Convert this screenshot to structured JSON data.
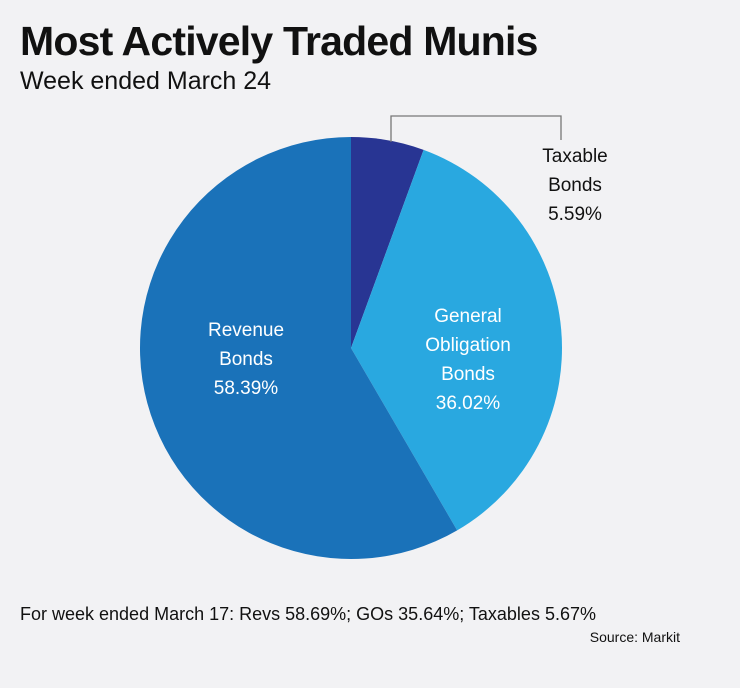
{
  "chart_data": {
    "type": "pie",
    "title": "Most Actively Traded Munis",
    "subtitle": "Week ended March 24",
    "slices": [
      {
        "label_lines": [
          "Taxable",
          "Bonds"
        ],
        "value_label": "5.59%",
        "value": 5.59,
        "color": "#283593"
      },
      {
        "label_lines": [
          "General",
          "Obligation",
          "Bonds"
        ],
        "value_label": "36.02%",
        "value": 36.02,
        "color": "#29a8e0"
      },
      {
        "label_lines": [
          "Revenue",
          "Bonds"
        ],
        "value_label": "58.39%",
        "value": 58.39,
        "color": "#1a72b9"
      }
    ],
    "footnote": "For week ended March 17: Revs 58.69%; GOs 35.64%; Taxables 5.67%",
    "source": "Source: Markit"
  }
}
